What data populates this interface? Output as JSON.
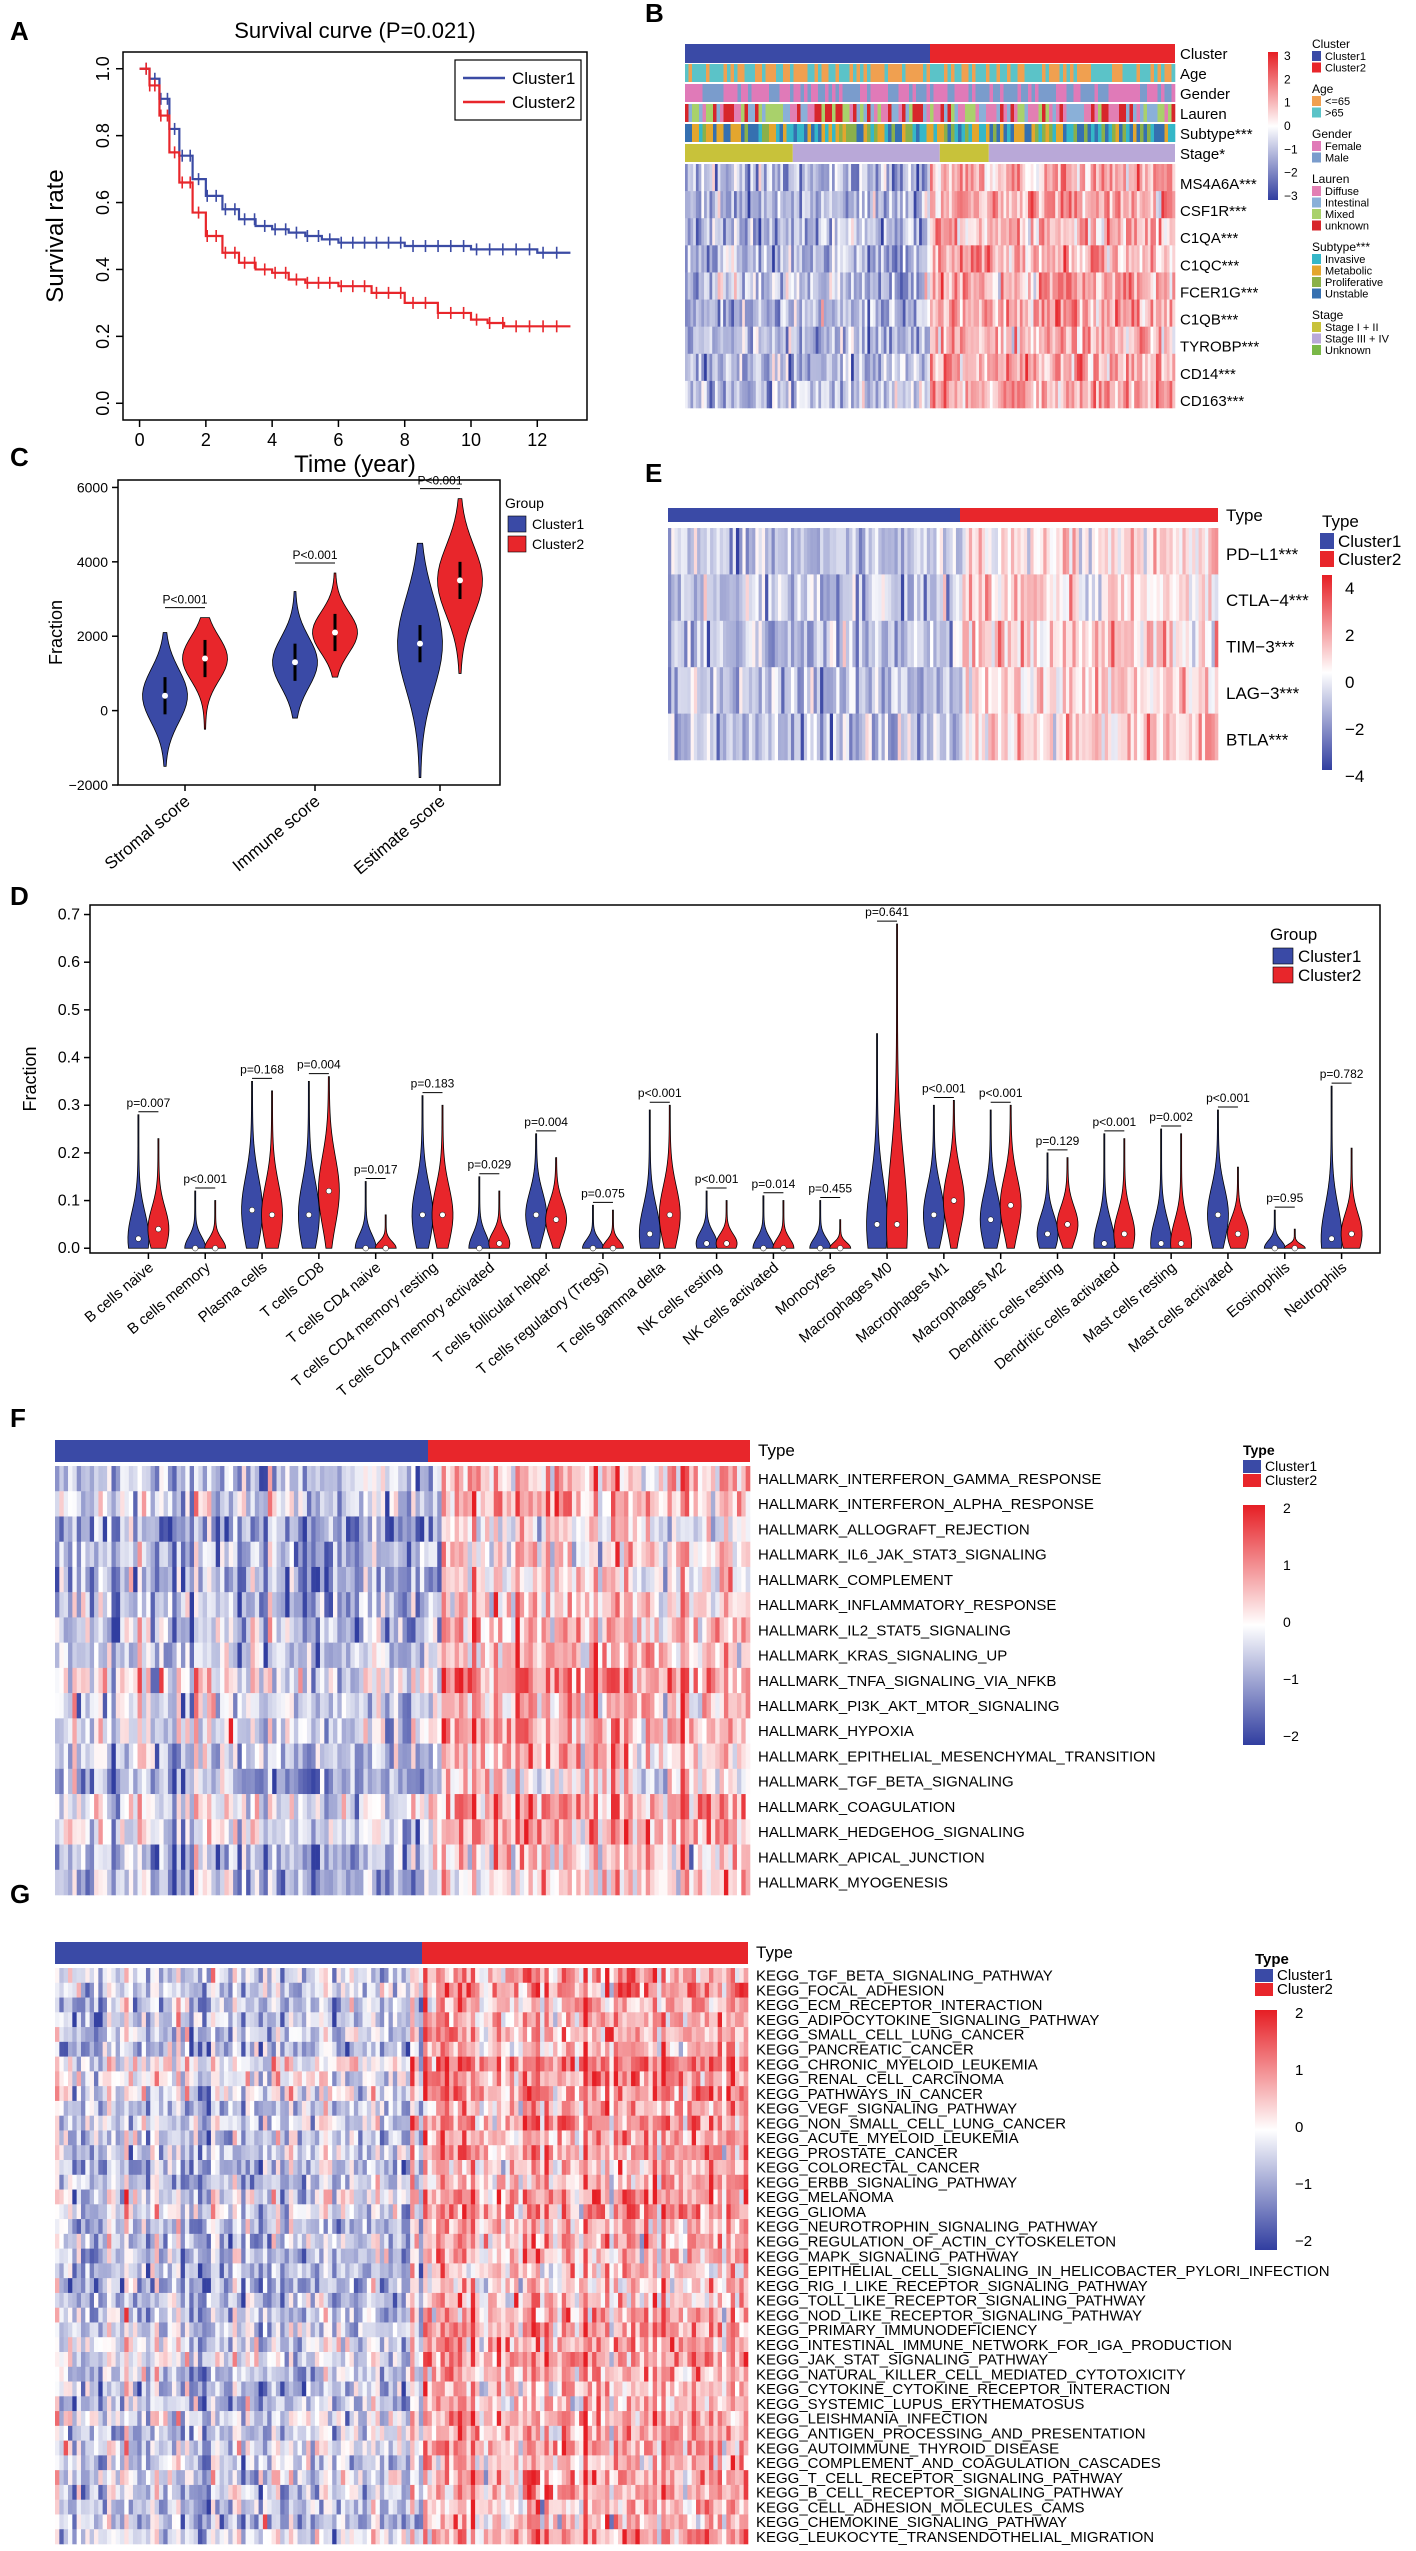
{
  "panels": {
    "A": "A",
    "B": "B",
    "C": "C",
    "D": "D",
    "E": "E",
    "F": "F",
    "G": "G"
  },
  "colors": {
    "cluster1": "#3a4aa6",
    "cluster2": "#e8262b",
    "cluster1_line": "#3b4ba4",
    "cluster2_line": "#e8262b"
  },
  "chart_data": [
    {
      "id": "A",
      "type": "line",
      "title": "Survival curve (P=0.021)",
      "xlabel": "Time (year)",
      "ylabel": "Survival rate",
      "xlim": [
        -0.5,
        13.5
      ],
      "ylim": [
        -0.05,
        1.05
      ],
      "xticks": [
        0,
        2,
        4,
        6,
        8,
        10,
        12
      ],
      "yticks": [
        0.0,
        0.2,
        0.4,
        0.6,
        0.8,
        1.0
      ],
      "legend": "top-right",
      "series": [
        {
          "name": "Cluster1",
          "x": [
            0,
            0.3,
            0.6,
            0.9,
            1.2,
            1.6,
            2.0,
            2.5,
            3.0,
            3.5,
            4.0,
            4.5,
            5.0,
            5.5,
            6.0,
            7.0,
            8.0,
            9.0,
            10.0,
            11.0,
            12.0,
            13.0
          ],
          "y": [
            1.0,
            0.97,
            0.91,
            0.82,
            0.74,
            0.67,
            0.62,
            0.58,
            0.55,
            0.53,
            0.52,
            0.51,
            0.5,
            0.49,
            0.48,
            0.48,
            0.47,
            0.47,
            0.46,
            0.46,
            0.45,
            0.45
          ]
        },
        {
          "name": "Cluster2",
          "x": [
            0,
            0.3,
            0.6,
            0.9,
            1.2,
            1.6,
            2.0,
            2.5,
            3.0,
            3.5,
            4.0,
            4.5,
            5.0,
            6.0,
            7.0,
            8.0,
            9.0,
            10.0,
            10.5,
            11.0,
            12.0,
            13.0
          ],
          "y": [
            1.0,
            0.95,
            0.86,
            0.75,
            0.66,
            0.57,
            0.5,
            0.45,
            0.42,
            0.4,
            0.39,
            0.37,
            0.36,
            0.35,
            0.33,
            0.3,
            0.27,
            0.25,
            0.24,
            0.23,
            0.23,
            0.23
          ]
        }
      ]
    },
    {
      "id": "B",
      "type": "heatmap",
      "annotations": [
        "Cluster",
        "Age",
        "Gender",
        "Lauren",
        "Subtype***",
        "Stage*"
      ],
      "genes": [
        "MS4A6A***",
        "CSF1R***",
        "C1QA***",
        "C1QC***",
        "FCER1G***",
        "C1QB***",
        "TYROBP***",
        "CD14***",
        "CD163***"
      ],
      "scale": [
        3,
        2,
        1,
        0,
        -1,
        -2,
        -3
      ],
      "legend": [
        {
          "title": "Cluster",
          "items": [
            {
              "label": "Cluster1",
              "color": "#3a4aa6"
            },
            {
              "label": "Cluster2",
              "color": "#e8262b"
            }
          ]
        },
        {
          "title": "Age",
          "items": [
            {
              "label": "<=65",
              "color": "#f0a050"
            },
            {
              "label": ">65",
              "color": "#5bc3c8"
            }
          ]
        },
        {
          "title": "Gender",
          "items": [
            {
              "label": "Female",
              "color": "#e07ab8"
            },
            {
              "label": "Male",
              "color": "#7a9ccc"
            }
          ]
        },
        {
          "title": "Lauren",
          "items": [
            {
              "label": "Diffuse",
              "color": "#e27fb3"
            },
            {
              "label": "Intestinal",
              "color": "#8ab0d8"
            },
            {
              "label": "Mixed",
              "color": "#a9d16b"
            },
            {
              "label": "unknown",
              "color": "#d7262b"
            }
          ]
        },
        {
          "title": "Subtype***",
          "items": [
            {
              "label": "Invasive",
              "color": "#35b7c8"
            },
            {
              "label": "Metabolic",
              "color": "#e3a62e"
            },
            {
              "label": "Proliferative",
              "color": "#8ab04a"
            },
            {
              "label": "Unstable",
              "color": "#3570b0"
            }
          ]
        },
        {
          "title": "Stage",
          "items": [
            {
              "label": "Stage I + II",
              "color": "#c8c23a"
            },
            {
              "label": "Stage III + IV",
              "color": "#b9a8d8"
            },
            {
              "label": "Unknown",
              "color": "#7ab848"
            }
          ]
        }
      ]
    },
    {
      "id": "C",
      "type": "violin",
      "ylabel": "Fraction",
      "ylim": [
        -2000,
        6200
      ],
      "yticks": [
        -2000,
        0,
        2000,
        4000,
        6000
      ],
      "legend_title": "Group",
      "legend_items": [
        "Cluster1",
        "Cluster2"
      ],
      "categories": [
        "Stromal score",
        "Immune score",
        "Estimate score"
      ],
      "pvalues": [
        "P<0.001",
        "P<0.001",
        "P<0.001"
      ],
      "series": [
        {
          "name": "Cluster1",
          "medians": [
            400,
            1300,
            1800
          ],
          "mins": [
            -1500,
            -200,
            -1800
          ],
          "maxs": [
            2100,
            3200,
            4500
          ]
        },
        {
          "name": "Cluster2",
          "medians": [
            1400,
            2100,
            3500
          ],
          "mins": [
            -500,
            900,
            1000
          ],
          "maxs": [
            2500,
            3700,
            5700
          ]
        }
      ]
    },
    {
      "id": "D",
      "type": "violin",
      "ylabel": "Fraction",
      "ylim": [
        -0.01,
        0.72
      ],
      "yticks": [
        0.0,
        0.1,
        0.2,
        0.3,
        0.4,
        0.5,
        0.6,
        0.7
      ],
      "legend_title": "Group",
      "legend_items": [
        "Cluster1",
        "Cluster2"
      ],
      "categories": [
        "B cells naive",
        "B cells memory",
        "Plasma cells",
        "T cells CD8",
        "T cells CD4 naive",
        "T cells CD4 memory resting",
        "T cells CD4 memory activated",
        "T cells follicular helper",
        "T cells regulatory (Tregs)",
        "T cells gamma delta",
        "NK cells resting",
        "NK cells activated",
        "Monocytes",
        "Macrophages M0",
        "Macrophages M1",
        "Macrophages M2",
        "Dendritic cells resting",
        "Dendritic cells activated",
        "Mast cells resting",
        "Mast cells activated",
        "Eosinophils",
        "Neutrophils"
      ],
      "pvalues": [
        "p=0.007",
        "p<0.001",
        "p=0.168",
        "p=0.004",
        "p=0.017",
        "p=0.183",
        "p=0.029",
        "p=0.004",
        "p=0.075",
        "p<0.001",
        "p<0.001",
        "p=0.014",
        "p=0.455",
        "p=0.641",
        "p<0.001",
        "p<0.001",
        "p=0.129",
        "p<0.001",
        "p=0.002",
        "p<0.001",
        "p=0.95",
        "p=0.782"
      ],
      "max1": [
        0.28,
        0.12,
        0.35,
        0.35,
        0.14,
        0.32,
        0.15,
        0.24,
        0.09,
        0.29,
        0.12,
        0.11,
        0.1,
        0.45,
        0.3,
        0.29,
        0.2,
        0.24,
        0.25,
        0.29,
        0.08,
        0.34
      ],
      "max2": [
        0.23,
        0.1,
        0.33,
        0.36,
        0.07,
        0.3,
        0.12,
        0.19,
        0.08,
        0.3,
        0.1,
        0.1,
        0.06,
        0.68,
        0.31,
        0.3,
        0.19,
        0.23,
        0.24,
        0.17,
        0.04,
        0.21
      ],
      "med1": [
        0.02,
        0.0,
        0.08,
        0.07,
        0.0,
        0.07,
        0.0,
        0.07,
        0.0,
        0.03,
        0.01,
        0.0,
        0.0,
        0.05,
        0.07,
        0.06,
        0.03,
        0.01,
        0.01,
        0.07,
        0.0,
        0.02
      ],
      "med2": [
        0.04,
        0.0,
        0.07,
        0.12,
        0.0,
        0.07,
        0.01,
        0.06,
        0.0,
        0.07,
        0.01,
        0.0,
        0.0,
        0.05,
        0.1,
        0.09,
        0.05,
        0.03,
        0.01,
        0.03,
        0.0,
        0.03
      ]
    },
    {
      "id": "E",
      "type": "heatmap",
      "type_label": "Type",
      "legend_items": [
        "Cluster1",
        "Cluster2"
      ],
      "rows": [
        "PD−L1***",
        "CTLA−4***",
        "TIM−3***",
        "LAG−3***",
        "BTLA***"
      ],
      "scale": [
        4,
        2,
        0,
        -2,
        -4
      ]
    },
    {
      "id": "F",
      "type": "heatmap",
      "type_label": "Type",
      "legend_items": [
        "Cluster1",
        "Cluster2"
      ],
      "scale": [
        2,
        1,
        0,
        -1,
        -2
      ],
      "rows": [
        "HALLMARK_INTERFERON_GAMMA_RESPONSE",
        "HALLMARK_INTERFERON_ALPHA_RESPONSE",
        "HALLMARK_ALLOGRAFT_REJECTION",
        "HALLMARK_IL6_JAK_STAT3_SIGNALING",
        "HALLMARK_COMPLEMENT",
        "HALLMARK_INFLAMMATORY_RESPONSE",
        "HALLMARK_IL2_STAT5_SIGNALING",
        "HALLMARK_KRAS_SIGNALING_UP",
        "HALLMARK_TNFA_SIGNALING_VIA_NFKB",
        "HALLMARK_PI3K_AKT_MTOR_SIGNALING",
        "HALLMARK_HYPOXIA",
        "HALLMARK_EPITHELIAL_MESENCHYMAL_TRANSITION",
        "HALLMARK_TGF_BETA_SIGNALING",
        "HALLMARK_COAGULATION",
        "HALLMARK_HEDGEHOG_SIGNALING",
        "HALLMARK_APICAL_JUNCTION",
        "HALLMARK_MYOGENESIS"
      ]
    },
    {
      "id": "G",
      "type": "heatmap",
      "type_label": "Type",
      "legend_items": [
        "Cluster1",
        "Cluster2"
      ],
      "scale": [
        2,
        1,
        0,
        -1,
        -2
      ],
      "rows": [
        "KEGG_TGF_BETA_SIGNALING_PATHWAY",
        "KEGG_FOCAL_ADHESION",
        "KEGG_ECM_RECEPTOR_INTERACTION",
        "KEGG_ADIPOCYTOKINE_SIGNALING_PATHWAY",
        "KEGG_SMALL_CELL_LUNG_CANCER",
        "KEGG_PANCREATIC_CANCER",
        "KEGG_CHRONIC_MYELOID_LEUKEMIA",
        "KEGG_RENAL_CELL_CARCINOMA",
        "KEGG_PATHWAYS_IN_CANCER",
        "KEGG_VEGF_SIGNALING_PATHWAY",
        "KEGG_NON_SMALL_CELL_LUNG_CANCER",
        "KEGG_ACUTE_MYELOID_LEUKEMIA",
        "KEGG_PROSTATE_CANCER",
        "KEGG_COLORECTAL_CANCER",
        "KEGG_ERBB_SIGNALING_PATHWAY",
        "KEGG_MELANOMA",
        "KEGG_GLIOMA",
        "KEGG_NEUROTROPHIN_SIGNALING_PATHWAY",
        "KEGG_REGULATION_OF_ACTIN_CYTOSKELETON",
        "KEGG_MAPK_SIGNALING_PATHWAY",
        "KEGG_EPITHELIAL_CELL_SIGNALING_IN_HELICOBACTER_PYLORI_INFECTION",
        "KEGG_RIG_I_LIKE_RECEPTOR_SIGNALING_PATHWAY",
        "KEGG_TOLL_LIKE_RECEPTOR_SIGNALING_PATHWAY",
        "KEGG_NOD_LIKE_RECEPTOR_SIGNALING_PATHWAY",
        "KEGG_PRIMARY_IMMUNODEFICIENCY",
        "KEGG_INTESTINAL_IMMUNE_NETWORK_FOR_IGA_PRODUCTION",
        "KEGG_JAK_STAT_SIGNALING_PATHWAY",
        "KEGG_NATURAL_KILLER_CELL_MEDIATED_CYTOTOXICITY",
        "KEGG_CYTOKINE_CYTOKINE_RECEPTOR_INTERACTION",
        "KEGG_SYSTEMIC_LUPUS_ERYTHEMATOSUS",
        "KEGG_LEISHMANIA_INFECTION",
        "KEGG_ANTIGEN_PROCESSING_AND_PRESENTATION",
        "KEGG_AUTOIMMUNE_THYROID_DISEASE",
        "KEGG_COMPLEMENT_AND_COAGULATION_CASCADES",
        "KEGG_T_CELL_RECEPTOR_SIGNALING_PATHWAY",
        "KEGG_B_CELL_RECEPTOR_SIGNALING_PATHWAY",
        "KEGG_CELL_ADHESION_MOLECULES_CAMS",
        "KEGG_CHEMOKINE_SIGNALING_PATHWAY",
        "KEGG_LEUKOCYTE_TRANSENDOTHELIAL_MIGRATION"
      ]
    }
  ]
}
